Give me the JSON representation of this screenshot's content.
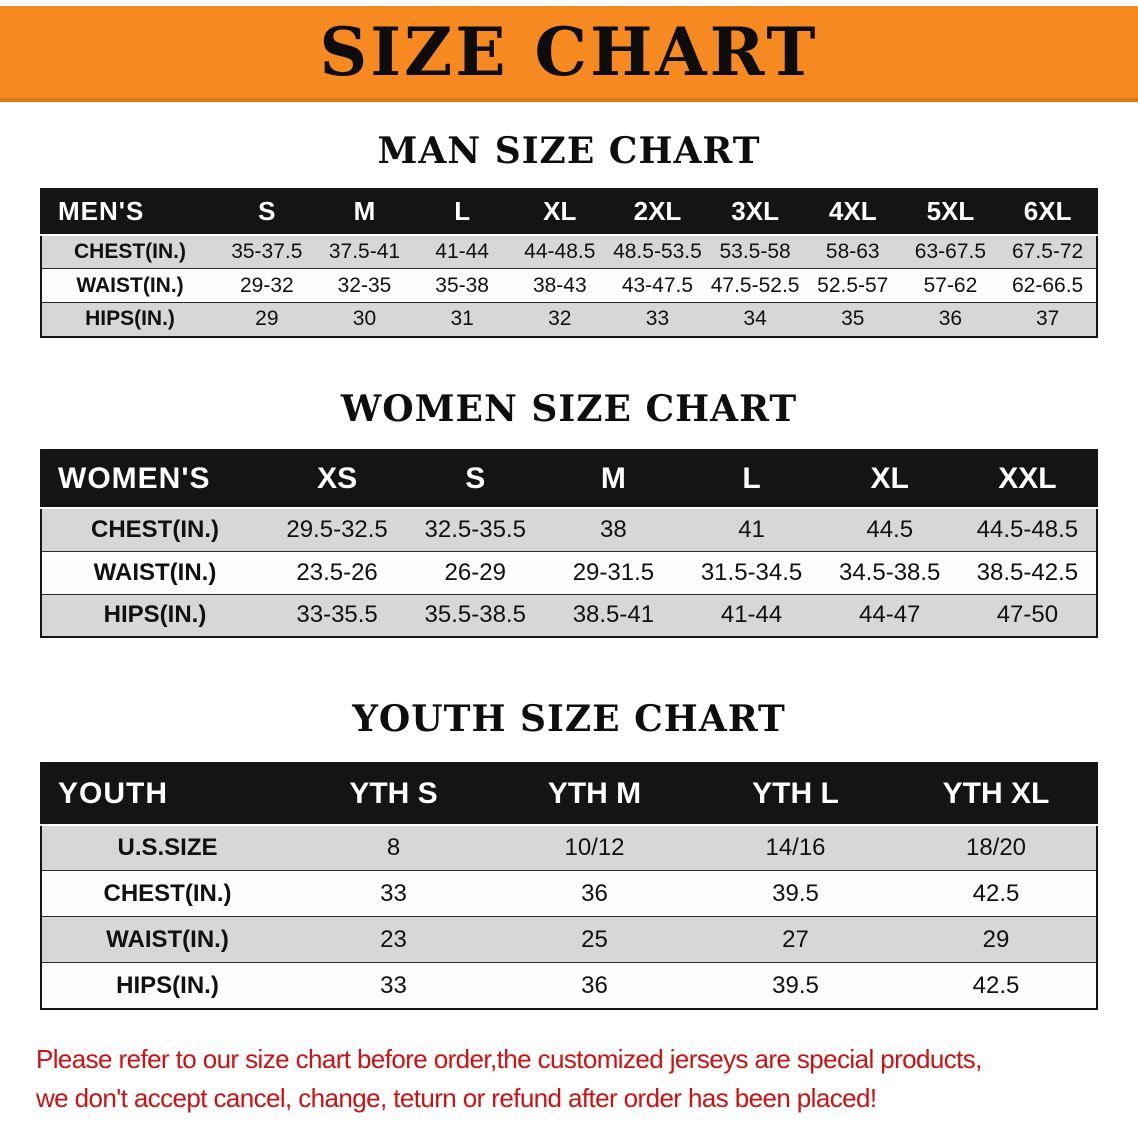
{
  "banner": {
    "title": "SIZE CHART"
  },
  "man": {
    "heading": "MAN SIZE CHART",
    "header": [
      "MEN'S",
      "S",
      "M",
      "L",
      "XL",
      "2XL",
      "3XL",
      "4XL",
      "5XL",
      "6XL"
    ],
    "rows": [
      [
        "CHEST(IN.)",
        "35-37.5",
        "37.5-41",
        "41-44",
        "44-48.5",
        "48.5-53.5",
        "53.5-58",
        "58-63",
        "63-67.5",
        "67.5-72"
      ],
      [
        "WAIST(IN.)",
        "29-32",
        "32-35",
        "35-38",
        "38-43",
        "43-47.5",
        "47.5-52.5",
        "52.5-57",
        "57-62",
        "62-66.5"
      ],
      [
        "HIPS(IN.)",
        "29",
        "30",
        "31",
        "32",
        "33",
        "34",
        "35",
        "36",
        "37"
      ]
    ]
  },
  "women": {
    "heading": "WOMEN SIZE CHART",
    "header": [
      "WOMEN'S",
      "XS",
      "S",
      "M",
      "L",
      "XL",
      "XXL"
    ],
    "rows": [
      [
        "CHEST(IN.)",
        "29.5-32.5",
        "32.5-35.5",
        "38",
        "41",
        "44.5",
        "44.5-48.5"
      ],
      [
        "WAIST(IN.)",
        "23.5-26",
        "26-29",
        "29-31.5",
        "31.5-34.5",
        "34.5-38.5",
        "38.5-42.5"
      ],
      [
        "HIPS(IN.)",
        "33-35.5",
        "35.5-38.5",
        "38.5-41",
        "41-44",
        "44-47",
        "47-50"
      ]
    ]
  },
  "youth": {
    "heading": "YOUTH SIZE CHART",
    "header": [
      "YOUTH",
      "YTH S",
      "YTH M",
      "YTH L",
      "YTH XL"
    ],
    "rows": [
      [
        "U.S.SIZE",
        "8",
        "10/12",
        "14/16",
        "18/20"
      ],
      [
        "CHEST(IN.)",
        "33",
        "36",
        "39.5",
        "42.5"
      ],
      [
        "WAIST(IN.)",
        "23",
        "25",
        "27",
        "29"
      ],
      [
        "HIPS(IN.)",
        "33",
        "36",
        "39.5",
        "42.5"
      ]
    ]
  },
  "disclaimer": {
    "line1": "Please refer to our size chart before order,the customized jerseys are special products,",
    "line2": "we don't accept cancel, change, teturn or refund after order has been placed!"
  },
  "colors": {
    "banner_bg": "#f6891f",
    "banner_edge": "#e07612",
    "header_bg": "#141414",
    "row_alt_bg": "#d7d7d7",
    "row_bg": "#fdfdfd",
    "disclaimer_red": "#cc1212"
  }
}
